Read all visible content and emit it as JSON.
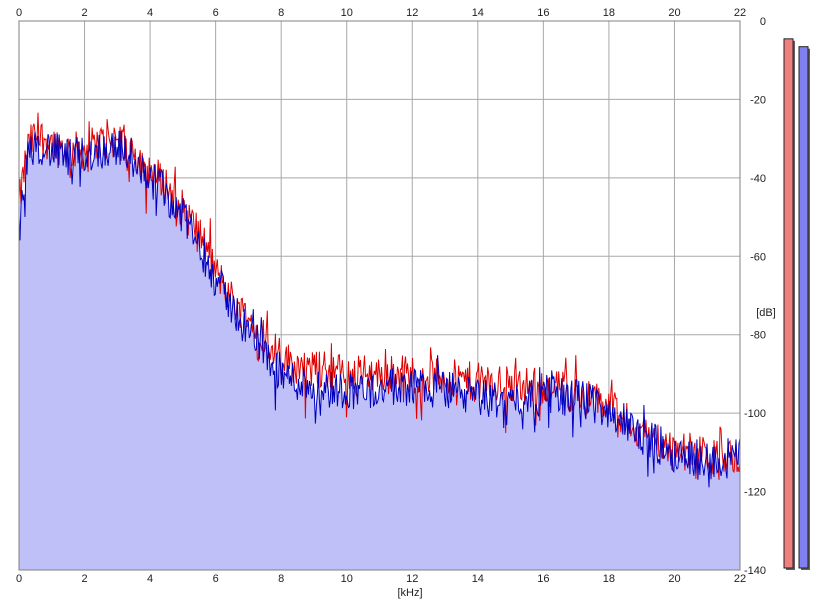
{
  "chart_data": {
    "type": "area",
    "xlabel": "[kHz]",
    "ylabel": "[dB]",
    "xlim": [
      0,
      22
    ],
    "ylim": [
      -140,
      0
    ],
    "x_ticks": [
      "0",
      "2",
      "4",
      "6",
      "8",
      "10",
      "12",
      "14",
      "16",
      "18",
      "20",
      "22"
    ],
    "y_ticks": [
      "0",
      "-20",
      "-40",
      "-60",
      "-80",
      "-100",
      "-120",
      "-140"
    ],
    "grid": true,
    "fill_color": "#c0c0f8",
    "series": [
      {
        "color": "#e00000",
        "x": [
          0,
          0.25,
          0.5,
          0.75,
          1,
          1.5,
          2,
          2.5,
          3,
          3.5,
          4,
          4.5,
          5,
          5.5,
          6,
          6.5,
          7,
          7.5,
          8,
          8.5,
          9,
          9.5,
          10,
          11,
          12,
          13,
          14,
          15,
          16,
          17,
          18,
          18.5,
          19,
          19.5,
          20,
          20.5,
          21,
          21.5,
          22
        ],
        "y": [
          -47,
          -33,
          -29,
          -30,
          -31,
          -33,
          -33,
          -31,
          -30,
          -33,
          -38,
          -42,
          -48,
          -54,
          -64,
          -71,
          -76,
          -80,
          -86,
          -88,
          -89,
          -89,
          -90,
          -90,
          -90,
          -91,
          -92,
          -93,
          -93,
          -95,
          -98,
          -102,
          -105,
          -107,
          -109,
          -110,
          -111,
          -112,
          -110
        ]
      },
      {
        "color": "#0000c0",
        "x": [
          0,
          0.25,
          0.5,
          0.75,
          1,
          1.5,
          2,
          2.5,
          3,
          3.5,
          4,
          4.5,
          5,
          5.5,
          6,
          6.5,
          7,
          7.5,
          8,
          8.5,
          9,
          9.5,
          10,
          11,
          12,
          13,
          14,
          15,
          16,
          17,
          18,
          18.5,
          19,
          19.5,
          20,
          20.5,
          21,
          21.5,
          22
        ],
        "y": [
          -55,
          -35,
          -31,
          -32,
          -33,
          -35,
          -34,
          -33,
          -32,
          -35,
          -40,
          -44,
          -50,
          -57,
          -66,
          -73,
          -79,
          -84,
          -90,
          -92,
          -93,
          -94,
          -94,
          -94,
          -93,
          -94,
          -96,
          -97,
          -95,
          -96,
          -99,
          -103,
          -106,
          -108,
          -110,
          -111,
          -112,
          -113,
          -111
        ]
      }
    ],
    "level_meters": [
      {
        "color": "#f08080",
        "level_db": -2
      },
      {
        "color": "#8080f0",
        "level_db": -4
      }
    ]
  }
}
